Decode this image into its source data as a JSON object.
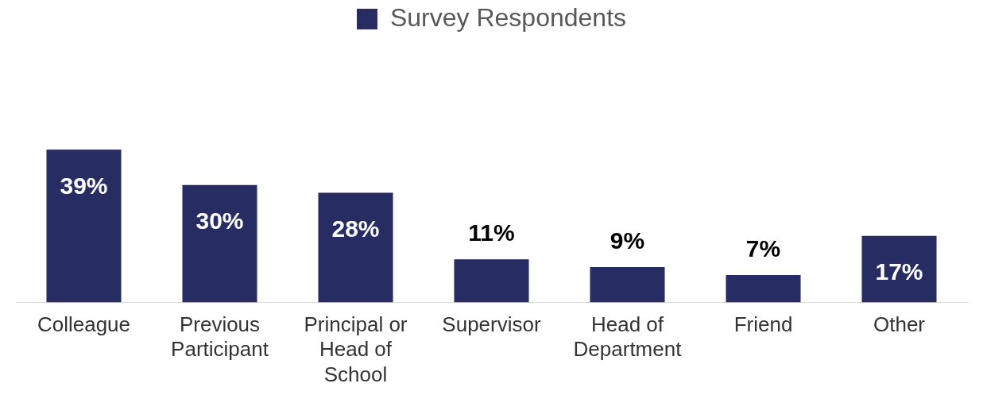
{
  "chart_data": {
    "type": "bar",
    "categories": [
      "Colleague",
      "Previous Participant",
      "Principal or Head of School",
      "Supervisor",
      "Head of Department",
      "Friend",
      "Other"
    ],
    "series": [
      {
        "name": "Survey Respondents",
        "color": "#272d63",
        "values": [
          39,
          30,
          28,
          11,
          9,
          7,
          17
        ],
        "value_labels": [
          "39%",
          "30%",
          "28%",
          "11%",
          "9%",
          "7%",
          "17%"
        ]
      }
    ],
    "tick_labels": "x",
    "legend": "top",
    "grid": false
  }
}
